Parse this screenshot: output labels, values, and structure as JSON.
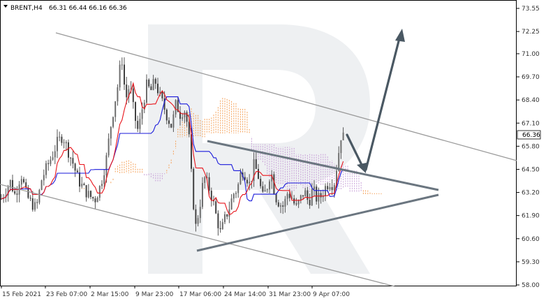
{
  "header": {
    "symbol_label": "BRENT,H4",
    "ohlc_label": "66.31 66.44 66.16 66.36",
    "dropdown_icon": "triangle-down-icon"
  },
  "chart_data": {
    "type": "candlestick",
    "symbol": "BRENT",
    "timeframe": "H4",
    "ylim": [
      58.0,
      73.55
    ],
    "yticks": [
      73.55,
      72.25,
      71.0,
      69.7,
      68.4,
      67.1,
      65.8,
      64.5,
      63.2,
      61.9,
      60.6,
      59.3,
      58.0
    ],
    "xticks": [
      "15 Feb 2021",
      "23 Feb 07:00",
      "2 Mar 15:00",
      "9 Mar 23:00",
      "17 Mar 06:00",
      "24 Mar 14:00",
      "31 Mar 23:00",
      "9 Apr 07:00"
    ],
    "current_price": 66.36,
    "current_price_label": "66.36",
    "colors": {
      "bull": "#555555",
      "bear": "#555555",
      "tenkan": "#e8141b",
      "kijun": "#1a1adb",
      "kumo_up": "#f5a25a",
      "kumo_down": "#c8a0d8",
      "trend": "#8a8a8a",
      "pattern": "#6b7680",
      "arrow": "#4a5863",
      "watermark": "#eef0f2"
    },
    "price_path": [
      [
        0,
        62.7
      ],
      [
        8,
        63.3
      ],
      [
        15,
        63.8
      ],
      [
        22,
        63.0
      ],
      [
        30,
        64.3
      ],
      [
        38,
        63.0
      ],
      [
        45,
        62.6
      ],
      [
        52,
        62.3
      ],
      [
        60,
        64.0
      ],
      [
        68,
        64.7
      ],
      [
        75,
        65.3
      ],
      [
        82,
        66.0
      ],
      [
        90,
        66.4
      ],
      [
        97,
        65.6
      ],
      [
        104,
        64.9
      ],
      [
        112,
        63.9
      ],
      [
        120,
        63.4
      ],
      [
        128,
        63.0
      ],
      [
        136,
        62.8
      ],
      [
        144,
        63.6
      ],
      [
        152,
        65.0
      ],
      [
        158,
        66.8
      ],
      [
        164,
        68.2
      ],
      [
        170,
        69.5
      ],
      [
        174,
        71.0
      ],
      [
        180,
        68.4
      ],
      [
        186,
        69.3
      ],
      [
        192,
        67.6
      ],
      [
        198,
        66.6
      ],
      [
        204,
        68.0
      ],
      [
        210,
        69.2
      ],
      [
        216,
        68.9
      ],
      [
        222,
        69.5
      ],
      [
        228,
        68.7
      ],
      [
        234,
        68.1
      ],
      [
        240,
        67.4
      ],
      [
        246,
        66.9
      ],
      [
        252,
        68.2
      ],
      [
        258,
        67.6
      ],
      [
        264,
        67.9
      ],
      [
        270,
        66.7
      ],
      [
        275,
        63.6
      ],
      [
        280,
        61.2
      ],
      [
        286,
        62.4
      ],
      [
        292,
        64.1
      ],
      [
        298,
        63.6
      ],
      [
        304,
        62.9
      ],
      [
        310,
        61.8
      ],
      [
        316,
        60.9
      ],
      [
        322,
        61.7
      ],
      [
        328,
        62.3
      ],
      [
        334,
        63.1
      ],
      [
        340,
        63.4
      ],
      [
        346,
        64.5
      ],
      [
        352,
        64.2
      ],
      [
        358,
        63.6
      ],
      [
        364,
        64.8
      ],
      [
        370,
        64.1
      ],
      [
        376,
        62.9
      ],
      [
        382,
        63.4
      ],
      [
        388,
        64.5
      ],
      [
        394,
        63.0
      ],
      [
        400,
        62.6
      ],
      [
        406,
        62.4
      ],
      [
        412,
        63.2
      ],
      [
        418,
        62.9
      ],
      [
        424,
        62.3
      ],
      [
        430,
        62.8
      ],
      [
        436,
        63.3
      ],
      [
        442,
        62.6
      ],
      [
        448,
        63.4
      ],
      [
        454,
        62.8
      ],
      [
        460,
        63.0
      ],
      [
        466,
        63.5
      ],
      [
        472,
        63.8
      ],
      [
        478,
        63.6
      ],
      [
        484,
        65.1
      ],
      [
        488,
        66.4
      ],
      [
        492,
        66.3
      ]
    ]
  }
}
